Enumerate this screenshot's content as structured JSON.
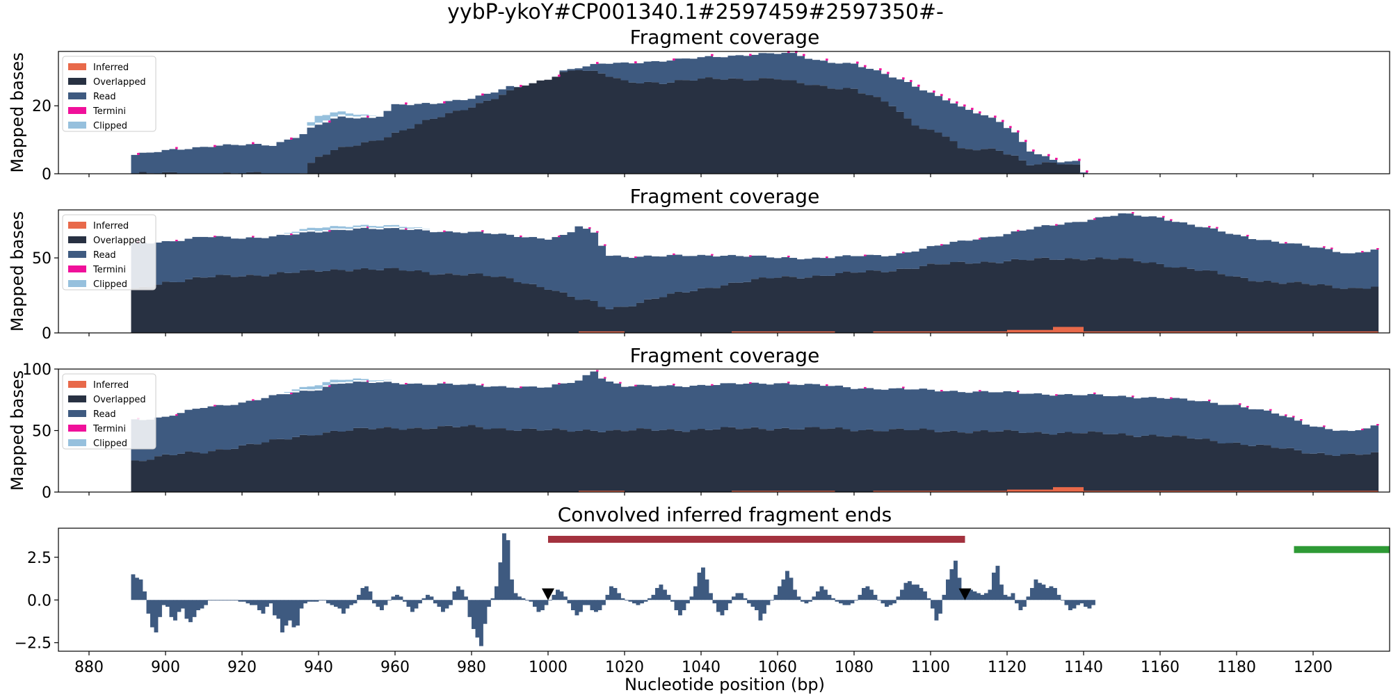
{
  "figure": {
    "suptitle": "yybP-ykoY#CP001340.1#2597459#2597350#-",
    "xlabel": "Nucleotide position (bp)"
  },
  "colors": {
    "inferred": "#E8694A",
    "overlapped": "#283142",
    "read": "#3E5A80",
    "termini": "#F0109A",
    "clipped": "#96C0DD",
    "conv": "#3E5A80",
    "red_bar": "#A3323E",
    "green_bar": "#2E9A35",
    "marker": "#000000"
  },
  "chart_data": [
    {
      "type": "area",
      "title": "Fragment coverage",
      "ylabel": "Mapped bases",
      "xlim": [
        872,
        1220
      ],
      "ylim": [
        0,
        36
      ],
      "yticks": [
        0,
        20
      ],
      "legend": {
        "placement": "top-left",
        "entries": [
          "Inferred",
          "Overlapped",
          "Read",
          "Termini",
          "Clipped"
        ]
      },
      "x_knots": [
        891,
        898,
        905,
        913,
        920,
        928,
        935,
        937,
        938,
        940,
        945,
        955,
        960,
        970,
        980,
        990,
        995,
        1000,
        1004,
        1008,
        1015,
        1020,
        1030,
        1045,
        1055,
        1060,
        1063,
        1070,
        1080,
        1090,
        1095,
        1105,
        1108,
        1118,
        1123,
        1125,
        1133,
        1139,
        1140
      ],
      "total_knots": [
        6,
        7,
        8,
        9,
        9,
        9,
        12,
        13,
        14,
        15,
        17,
        17,
        21,
        21,
        23,
        26,
        26,
        28,
        31,
        32,
        33,
        33,
        34,
        35,
        36,
        36,
        36,
        34,
        33,
        29,
        27,
        22,
        20,
        16,
        12,
        8,
        4,
        4,
        1
      ],
      "overlapped_knots": [
        0,
        0,
        0,
        0,
        0,
        0,
        0,
        1,
        3,
        5,
        7,
        10,
        12,
        16,
        20,
        24,
        27,
        28,
        30,
        31,
        29,
        27,
        27,
        28,
        28,
        28,
        27,
        26,
        25,
        20,
        15,
        11,
        7,
        7,
        5,
        3,
        3,
        2,
        0
      ],
      "clipped_knots": [
        0,
        0,
        0,
        0,
        0,
        0,
        0,
        0,
        1,
        2,
        1,
        0,
        0,
        0,
        0,
        0,
        0,
        0,
        0,
        0,
        0,
        0,
        0,
        0,
        0,
        0,
        0,
        0,
        0,
        0,
        0,
        0,
        0,
        0,
        0,
        0,
        0,
        0,
        0
      ],
      "inferred_knots": []
    },
    {
      "type": "area",
      "title": "Fragment coverage",
      "ylabel": "Mapped bases",
      "xlim": [
        872,
        1220
      ],
      "ylim": [
        0,
        82
      ],
      "yticks": [
        0,
        50
      ],
      "legend": {
        "placement": "top-left",
        "entries": [
          "Inferred",
          "Overlapped",
          "Read",
          "Termini",
          "Clipped"
        ]
      },
      "x_knots": [
        891,
        900,
        910,
        920,
        930,
        940,
        950,
        960,
        970,
        980,
        990,
        1000,
        1005,
        1008,
        1013,
        1015,
        1020,
        1030,
        1045,
        1060,
        1070,
        1080,
        1090,
        1100,
        1110,
        1120,
        1130,
        1140,
        1150,
        1160,
        1170,
        1180,
        1190,
        1200,
        1210,
        1217
      ],
      "total_knots": [
        60,
        62,
        65,
        64,
        66,
        68,
        71,
        70,
        69,
        68,
        66,
        64,
        66,
        72,
        66,
        53,
        52,
        52,
        53,
        51,
        51,
        52,
        53,
        58,
        63,
        67,
        72,
        76,
        80,
        78,
        72,
        66,
        62,
        58,
        54,
        57
      ],
      "overlapped_knots": [
        28,
        34,
        37,
        38,
        40,
        41,
        43,
        42,
        40,
        39,
        36,
        30,
        25,
        22,
        20,
        16,
        18,
        24,
        32,
        37,
        38,
        40,
        42,
        45,
        47,
        48,
        49,
        50,
        49,
        46,
        42,
        37,
        34,
        32,
        30,
        31
      ],
      "clipped_knots": [
        0,
        0,
        0,
        0,
        0,
        2,
        1,
        1,
        0,
        0,
        0,
        0,
        0,
        0,
        0,
        0,
        0,
        0,
        0,
        0,
        0,
        0,
        0,
        0,
        0,
        0,
        0,
        0,
        0,
        0,
        0,
        0,
        0,
        0,
        0,
        0
      ],
      "inferred_segments": [
        {
          "from": 1008,
          "to": 1020,
          "value": 1
        },
        {
          "from": 1048,
          "to": 1075,
          "value": 1
        },
        {
          "from": 1085,
          "to": 1120,
          "value": 1
        },
        {
          "from": 1120,
          "to": 1132,
          "value": 2
        },
        {
          "from": 1132,
          "to": 1140,
          "value": 4
        },
        {
          "from": 1140,
          "to": 1217,
          "value": 1
        }
      ]
    },
    {
      "type": "area",
      "title": "Fragment coverage",
      "ylabel": "Mapped bases",
      "xlim": [
        872,
        1220
      ],
      "ylim": [
        0,
        100
      ],
      "yticks": [
        0,
        50,
        100
      ],
      "legend": {
        "placement": "top-left",
        "entries": [
          "Inferred",
          "Overlapped",
          "Read",
          "Termini",
          "Clipped"
        ]
      },
      "x_knots": [
        891,
        900,
        910,
        920,
        930,
        940,
        945,
        960,
        980,
        1000,
        1008,
        1012,
        1015,
        1020,
        1040,
        1060,
        1080,
        1100,
        1120,
        1140,
        1160,
        1180,
        1190,
        1200,
        1210,
        1217
      ],
      "total_knots": [
        60,
        62,
        70,
        74,
        80,
        85,
        90,
        90,
        88,
        86,
        92,
        100,
        92,
        87,
        88,
        90,
        86,
        84,
        82,
        80,
        78,
        72,
        65,
        55,
        50,
        55
      ],
      "overlapped_knots": [
        25,
        30,
        32,
        38,
        42,
        48,
        50,
        52,
        53,
        50,
        50,
        51,
        50,
        50,
        51,
        52,
        51,
        50,
        49,
        48,
        46,
        40,
        36,
        32,
        30,
        31
      ],
      "clipped_knots": [
        0,
        0,
        0,
        0,
        0,
        3,
        2,
        0,
        0,
        0,
        0,
        0,
        0,
        0,
        0,
        0,
        0,
        0,
        0,
        0,
        0,
        0,
        0,
        0,
        0,
        0
      ],
      "inferred_segments": [
        {
          "from": 1008,
          "to": 1020,
          "value": 1
        },
        {
          "from": 1048,
          "to": 1075,
          "value": 1
        },
        {
          "from": 1085,
          "to": 1120,
          "value": 1
        },
        {
          "from": 1120,
          "to": 1132,
          "value": 2
        },
        {
          "from": 1132,
          "to": 1140,
          "value": 4
        },
        {
          "from": 1140,
          "to": 1217,
          "value": 1
        }
      ]
    },
    {
      "type": "bar",
      "title": "Convolved inferred fragment ends",
      "ylim": [
        -3.0,
        4.2
      ],
      "yticks": [
        -2.5,
        0.0,
        2.5
      ],
      "ytick_labels": [
        "−2.5",
        "0.0",
        "2.5"
      ],
      "xticks": [
        880,
        900,
        920,
        940,
        960,
        980,
        1000,
        1020,
        1040,
        1060,
        1080,
        1100,
        1120,
        1140,
        1160,
        1180,
        1200
      ],
      "values_start": 891,
      "values": [
        1.5,
        1.3,
        1.2,
        0.5,
        -0.8,
        -1.6,
        -1.9,
        -1.0,
        -0.3,
        -0.4,
        -1.0,
        -1.2,
        -0.7,
        -0.5,
        -1.1,
        -1.3,
        -1.0,
        -0.6,
        -0.5,
        -0.3,
        0.0,
        0.0,
        0.0,
        0.0,
        0.0,
        0.0,
        0.0,
        0.0,
        -0.1,
        -0.1,
        -0.2,
        -0.3,
        -0.3,
        -0.6,
        -0.8,
        -0.4,
        -0.2,
        -0.9,
        -1.1,
        -1.9,
        -1.5,
        -1.2,
        -1.6,
        -1.5,
        -0.5,
        -0.2,
        -0.1,
        -0.1,
        -0.1,
        0.0,
        0.0,
        -0.2,
        -0.3,
        -0.4,
        -0.5,
        -0.8,
        -0.5,
        -0.3,
        -0.2,
        0.3,
        0.7,
        0.8,
        0.5,
        -0.2,
        -0.4,
        -0.6,
        -0.3,
        0.0,
        0.2,
        0.3,
        0.2,
        -0.1,
        -0.4,
        -0.7,
        -0.5,
        -0.2,
        0.1,
        0.3,
        0.2,
        -0.2,
        -0.4,
        -0.7,
        -0.5,
        -0.3,
        0.5,
        0.8,
        0.6,
        0.2,
        -1.0,
        -1.7,
        -2.2,
        -2.7,
        -1.4,
        -0.4,
        0.1,
        0.8,
        2.2,
        3.9,
        3.5,
        1.2,
        0.4,
        0.2,
        0.1,
        0.0,
        -0.1,
        -0.4,
        -0.7,
        -0.6,
        -0.3,
        0.0,
        0.3,
        0.6,
        0.5,
        0.2,
        -0.2,
        -0.6,
        -0.9,
        -0.7,
        -0.3,
        -0.3,
        -0.6,
        -0.7,
        -0.6,
        -0.3,
        0.3,
        0.8,
        0.7,
        0.4,
        0.1,
        0.0,
        -0.1,
        -0.2,
        -0.3,
        -0.2,
        -0.1,
        0.1,
        0.3,
        0.7,
        0.9,
        0.6,
        0.3,
        -0.1,
        -0.6,
        -0.9,
        -0.6,
        -0.2,
        0.2,
        0.8,
        1.6,
        1.9,
        1.2,
        0.4,
        -0.2,
        -0.7,
        -0.9,
        -0.6,
        -0.2,
        0.2,
        0.4,
        0.4,
        0.1,
        -0.2,
        -0.4,
        -0.6,
        -1.2,
        -0.8,
        -0.3,
        0.0,
        0.3,
        0.8,
        1.2,
        1.7,
        1.3,
        0.6,
        0.2,
        -0.1,
        -0.2,
        -0.1,
        0.2,
        0.5,
        0.8,
        0.6,
        0.3,
        0.1,
        -0.1,
        -0.2,
        -0.3,
        -0.3,
        -0.2,
        0.0,
        0.3,
        0.7,
        0.8,
        0.6,
        0.3,
        0.0,
        -0.2,
        -0.4,
        -0.3,
        -0.2,
        0.2,
        0.6,
        1.0,
        1.1,
        0.9,
        0.9,
        0.7,
        0.5,
        0.1,
        -0.5,
        -1.2,
        -0.8,
        0.3,
        1.2,
        1.8,
        2.3,
        1.3,
        0.6,
        0.5,
        0.6,
        0.5,
        0.4,
        0.3,
        0.4,
        0.6,
        1.6,
        2.0,
        0.9,
        0.3,
        0.2,
        0.4,
        -0.2,
        -0.6,
        -0.4,
        0.2,
        0.7,
        1.2,
        1.0,
        0.9,
        0.7,
        0.8,
        0.7,
        0.3,
        0.0,
        -0.3,
        -0.6,
        -0.5,
        -0.3,
        -0.2,
        -0.4,
        -0.5,
        -0.3
      ],
      "annotations": [
        {
          "type": "bar",
          "from": 1000,
          "to": 1109,
          "y": 3.55,
          "color": "red_bar"
        },
        {
          "type": "bar",
          "from": 1195,
          "to": 1220,
          "y": 2.95,
          "color": "green_bar"
        },
        {
          "type": "marker",
          "x": 1000,
          "y": 0.35,
          "shape": "triangle-down"
        },
        {
          "type": "marker",
          "x": 1109,
          "y": 0.35,
          "shape": "triangle-down"
        }
      ]
    }
  ]
}
